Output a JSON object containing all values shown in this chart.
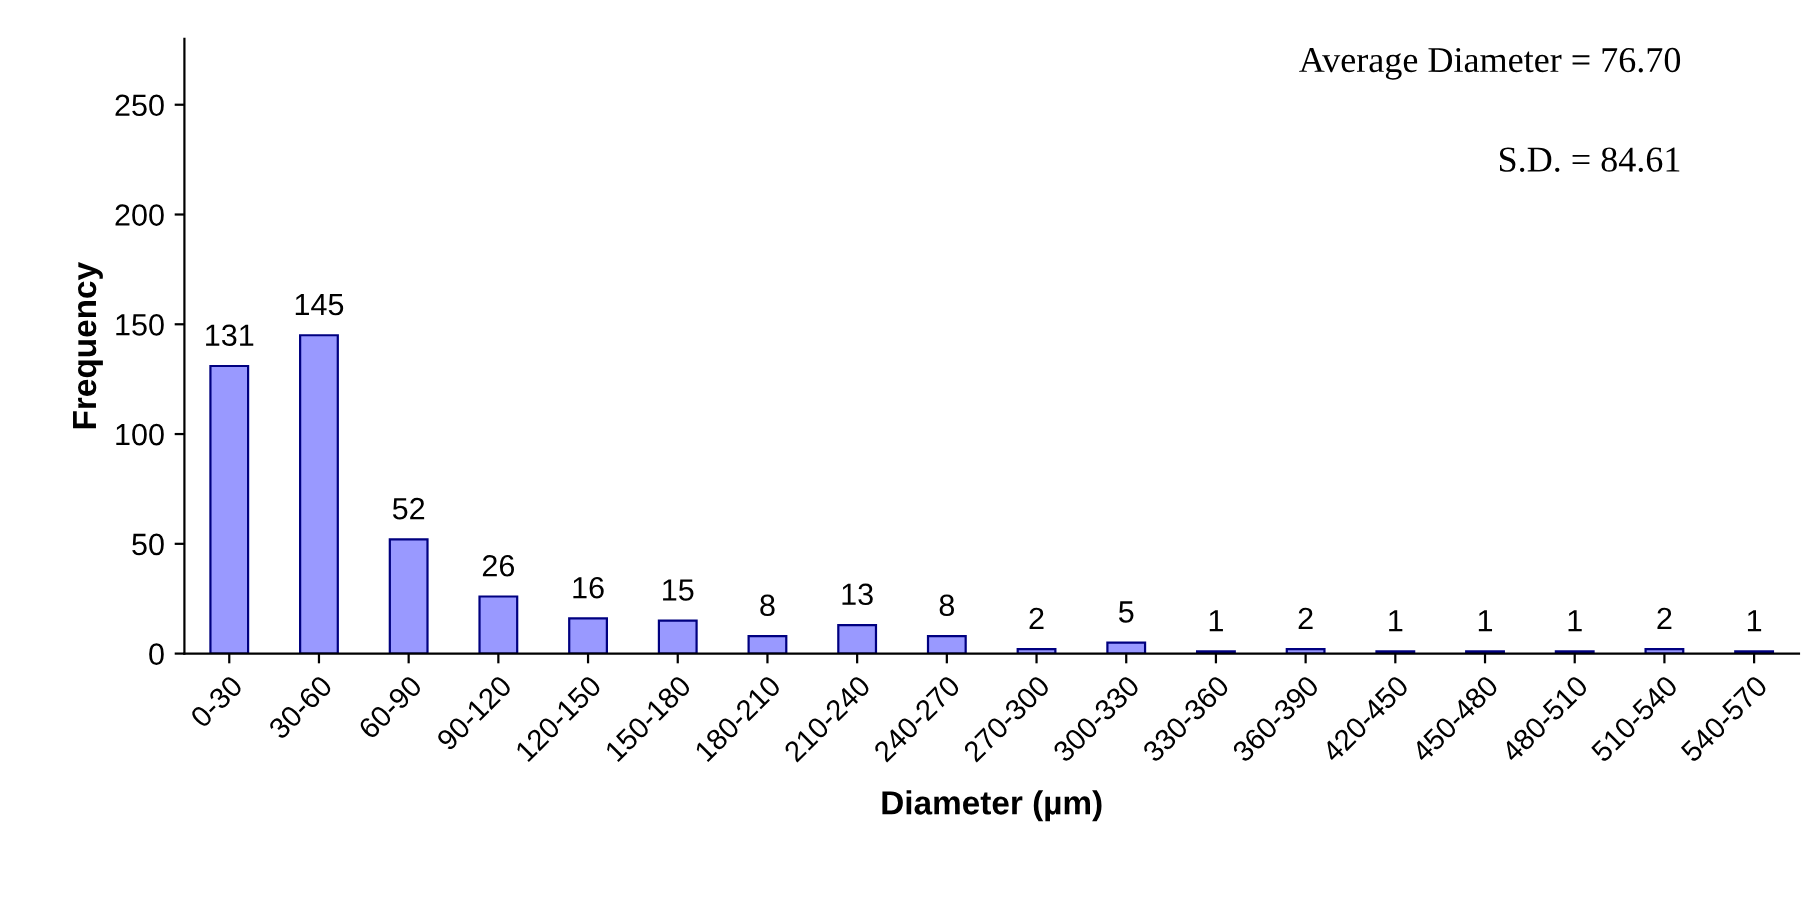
{
  "chart_data": {
    "type": "bar",
    "xlabel": "Diameter (µm)",
    "ylabel": "Frequency",
    "categories": [
      "0-30",
      "30-60",
      "60-90",
      "90-120",
      "120-150",
      "150-180",
      "180-210",
      "210-240",
      "240-270",
      "270-300",
      "300-330",
      "330-360",
      "360-390",
      "420-450",
      "450-480",
      "480-510",
      "510-540",
      "540-570"
    ],
    "values": [
      131,
      145,
      52,
      26,
      16,
      15,
      8,
      13,
      8,
      2,
      5,
      1,
      2,
      1,
      1,
      1,
      2,
      1
    ],
    "color": "#9999ff",
    "ylim": [
      0,
      280
    ],
    "yticks": [
      0,
      50,
      100,
      150,
      200,
      250
    ],
    "data_labels": true,
    "grid": false,
    "legend": false,
    "annotations": [
      "Average Diameter = 76.70",
      "S.D. = 84.61"
    ]
  }
}
